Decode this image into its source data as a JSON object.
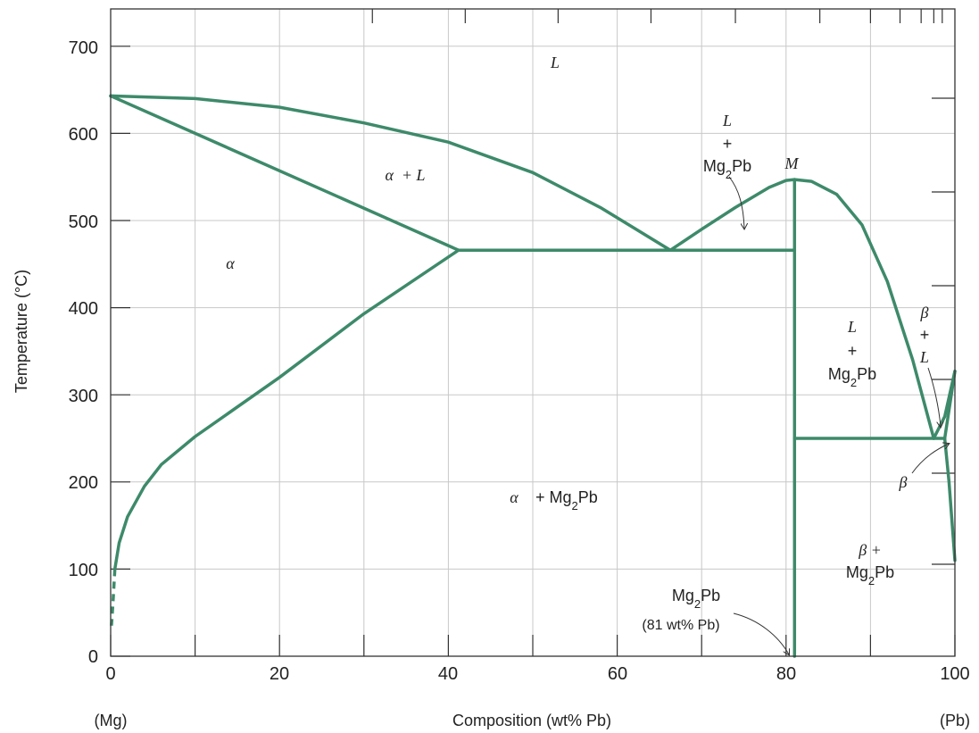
{
  "chart_data": {
    "type": "phase-diagram",
    "x_axis": {
      "title": "Composition (wt% Pb)",
      "range": [
        0,
        100
      ],
      "ticks": [
        "0",
        "20",
        "40",
        "60",
        "80",
        "100"
      ],
      "tick_values": [
        0,
        20,
        40,
        60,
        80,
        100
      ],
      "end_left": "(Mg)",
      "end_right": "(Pb)"
    },
    "y_axis": {
      "title": "Temperature (°C)",
      "range": [
        0,
        700
      ],
      "ticks": [
        "0",
        "100",
        "200",
        "300",
        "400",
        "500",
        "600",
        "700"
      ],
      "tick_values": [
        0,
        100,
        200,
        300,
        400,
        500,
        600,
        700
      ]
    },
    "grid": true,
    "line_color": "#3d8a6a",
    "phase_boundaries": [
      {
        "name": "liquidus-mg",
        "points": [
          [
            0,
            643
          ],
          [
            10,
            640
          ],
          [
            20,
            630
          ],
          [
            30,
            612
          ],
          [
            40,
            590
          ],
          [
            50,
            555
          ],
          [
            58,
            515
          ],
          [
            66.3,
            466
          ]
        ]
      },
      {
        "name": "solidus-alpha",
        "points": [
          [
            0,
            643
          ],
          [
            41.2,
            466
          ]
        ]
      },
      {
        "name": "solvus-alpha",
        "points": [
          [
            0.5,
            100
          ],
          [
            1,
            130
          ],
          [
            2,
            160
          ],
          [
            4,
            195
          ],
          [
            6,
            220
          ],
          [
            10,
            252
          ],
          [
            20,
            320
          ],
          [
            30,
            393
          ],
          [
            41.2,
            466
          ]
        ]
      },
      {
        "name": "eutectic-1",
        "points": [
          [
            41.2,
            466
          ],
          [
            81,
            466
          ]
        ]
      },
      {
        "name": "liquidus-compound-left",
        "points": [
          [
            66.3,
            466
          ],
          [
            70,
            490
          ],
          [
            74,
            515
          ],
          [
            78,
            538
          ],
          [
            80,
            546
          ],
          [
            81,
            547
          ]
        ]
      },
      {
        "name": "compound-line",
        "points": [
          [
            81,
            0
          ],
          [
            81,
            547
          ]
        ]
      },
      {
        "name": "liquidus-compound-right",
        "points": [
          [
            81,
            547
          ],
          [
            83,
            545
          ],
          [
            86,
            530
          ],
          [
            89,
            495
          ],
          [
            92,
            430
          ],
          [
            95,
            340
          ],
          [
            97.5,
            250
          ]
        ]
      },
      {
        "name": "eutectic-2",
        "points": [
          [
            81,
            250
          ],
          [
            98.8,
            250
          ]
        ]
      },
      {
        "name": "liquidus-pb",
        "points": [
          [
            97.5,
            250
          ],
          [
            98.8,
            275
          ],
          [
            100,
            327
          ]
        ]
      },
      {
        "name": "solidus-beta",
        "points": [
          [
            98.8,
            250
          ],
          [
            100,
            327
          ]
        ]
      },
      {
        "name": "solvus-beta",
        "points": [
          [
            98.8,
            250
          ],
          [
            99.3,
            200
          ],
          [
            100,
            110
          ]
        ]
      }
    ],
    "dashed_segments": [
      {
        "name": "solvus-alpha-low",
        "points": [
          [
            0.5,
            100
          ],
          [
            0.3,
            65
          ],
          [
            0.1,
            35
          ]
        ]
      }
    ],
    "annotations": [
      {
        "id": "L",
        "lines": [
          "L"
        ],
        "style": "italic",
        "x": 52.5,
        "y": 680
      },
      {
        "id": "alpha-L",
        "lines": [
          "α  + L"
        ],
        "style": "italic",
        "x": 35,
        "y": 553
      },
      {
        "id": "L-Mg2Pb-top",
        "lines": [
          "L",
          "+",
          "Mg2Pb"
        ],
        "x": 73,
        "y": 620
      },
      {
        "id": "M",
        "lines": [
          "M"
        ],
        "style": "italic",
        "x": 80,
        "y": 565
      },
      {
        "id": "alpha",
        "lines": [
          "α"
        ],
        "style": "italic",
        "x": 14,
        "y": 453
      },
      {
        "id": "L-Mg2Pb-right",
        "lines": [
          "L",
          "+",
          "Mg2Pb"
        ],
        "x": 88,
        "y": 380
      },
      {
        "id": "beta-L",
        "lines": [
          "β",
          "+",
          "L"
        ],
        "style": "italic",
        "x": 96.5,
        "y": 398
      },
      {
        "id": "alpha-Mg2Pb",
        "lines": [
          "α    + Mg2Pb"
        ],
        "x": 53,
        "y": 185
      },
      {
        "id": "beta",
        "lines": [
          "β"
        ],
        "style": "italic",
        "x": 94,
        "y": 200
      },
      {
        "id": "beta-Mg2Pb",
        "lines": [
          "β +",
          "Mg2Pb"
        ],
        "x": 90,
        "y": 122
      },
      {
        "id": "Mg2Pb-compound",
        "lines": [
          "Mg2Pb",
          "(81 wt% Pb)"
        ],
        "x": 69,
        "y": 68
      }
    ]
  }
}
